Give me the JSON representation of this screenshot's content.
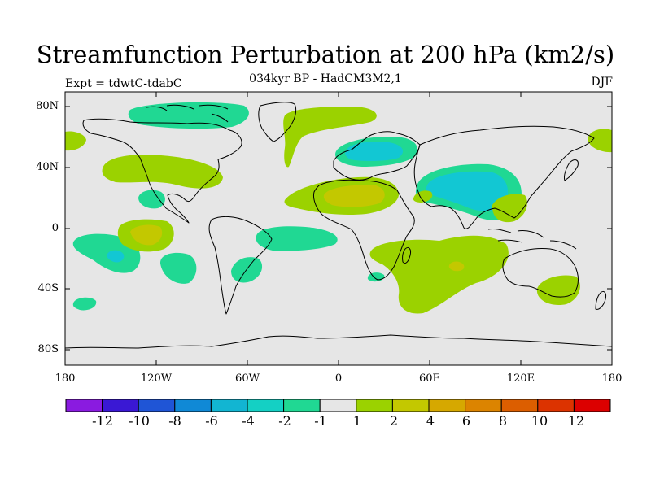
{
  "title": "Streamfunction Perturbation at 200 hPa (km2/s)",
  "subtitle_left": "Expt = tdwtC-tdabC",
  "subtitle_center": "034kyr BP - HadCM3M2,1",
  "subtitle_right": "DJF",
  "map": {
    "projection": "equirectangular",
    "lon_range": [
      -180,
      180
    ],
    "lat_range": [
      -90,
      90
    ],
    "ocean_color": "#e6e6e6",
    "coastline_color": "#000000",
    "y_ticks": [
      "80N",
      "40N",
      "0",
      "40S",
      "80S"
    ],
    "x_ticks": [
      "180",
      "120W",
      "60W",
      "0",
      "60E",
      "120E",
      "180"
    ]
  },
  "colorbar": {
    "colors": [
      "#8a1be0",
      "#3a18d4",
      "#1f55d6",
      "#1089d6",
      "#12b5d2",
      "#14d0c4",
      "#20d893",
      "#e6e6e6",
      "#9bd200",
      "#c3c800",
      "#d6a800",
      "#dc8400",
      "#dc5e00",
      "#dc3300",
      "#dc0000"
    ],
    "labels": [
      "-12",
      "-10",
      "-8",
      "-6",
      "-4",
      "-2",
      "-1",
      "1",
      "2",
      "4",
      "6",
      "8",
      "10",
      "12"
    ]
  },
  "fields": {
    "level_colors": {
      "-4": "#12c7d3",
      "-2": "#14d0a8",
      "2": "#9bd200",
      "4": "#c3c800"
    }
  }
}
